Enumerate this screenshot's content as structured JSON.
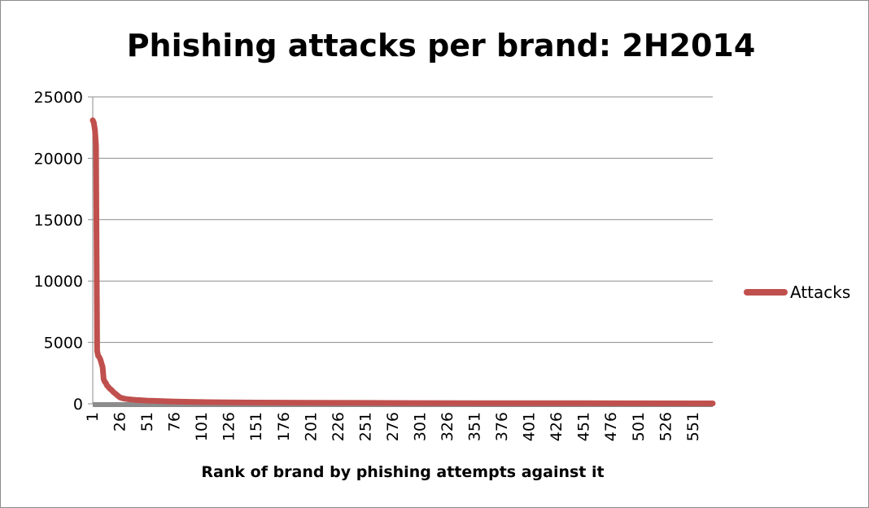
{
  "chart_data": {
    "type": "line",
    "title": "Phishing attacks per brand: 2H2014",
    "xlabel": "Rank of brand by phishing attempts against it",
    "ylabel": "",
    "ylim": [
      0,
      25000
    ],
    "yticks": [
      0,
      5000,
      10000,
      15000,
      20000,
      25000
    ],
    "xticks": [
      1,
      26,
      51,
      76,
      101,
      126,
      151,
      176,
      201,
      226,
      251,
      276,
      301,
      326,
      351,
      376,
      401,
      426,
      451,
      476,
      501,
      526,
      551
    ],
    "xlim": [
      1,
      569
    ],
    "grid": true,
    "legend_position": "right",
    "series": [
      {
        "name": "Attacks",
        "color": "#c0504d",
        "points": [
          [
            1,
            23100
          ],
          [
            2,
            22900
          ],
          [
            3,
            22300
          ],
          [
            4,
            21000
          ],
          [
            5,
            4300
          ],
          [
            6,
            3900
          ],
          [
            7,
            3800
          ],
          [
            8,
            3600
          ],
          [
            9,
            3300
          ],
          [
            10,
            3000
          ],
          [
            11,
            2000
          ],
          [
            12,
            1800
          ],
          [
            13,
            1700
          ],
          [
            14,
            1500
          ],
          [
            15,
            1400
          ],
          [
            16,
            1300
          ],
          [
            17,
            1200
          ],
          [
            18,
            1150
          ],
          [
            19,
            1050
          ],
          [
            20,
            950
          ],
          [
            22,
            800
          ],
          [
            24,
            650
          ],
          [
            26,
            520
          ],
          [
            28,
            460
          ],
          [
            30,
            420
          ],
          [
            33,
            380
          ],
          [
            36,
            350
          ],
          [
            40,
            320
          ],
          [
            45,
            290
          ],
          [
            51,
            260
          ],
          [
            60,
            230
          ],
          [
            70,
            200
          ],
          [
            76,
            180
          ],
          [
            90,
            160
          ],
          [
            101,
            140
          ],
          [
            126,
            120
          ],
          [
            151,
            100
          ],
          [
            176,
            90
          ],
          [
            201,
            80
          ],
          [
            251,
            70
          ],
          [
            301,
            60
          ],
          [
            351,
            55
          ],
          [
            401,
            50
          ],
          [
            451,
            45
          ],
          [
            501,
            40
          ],
          [
            551,
            35
          ],
          [
            569,
            30
          ]
        ]
      }
    ]
  }
}
